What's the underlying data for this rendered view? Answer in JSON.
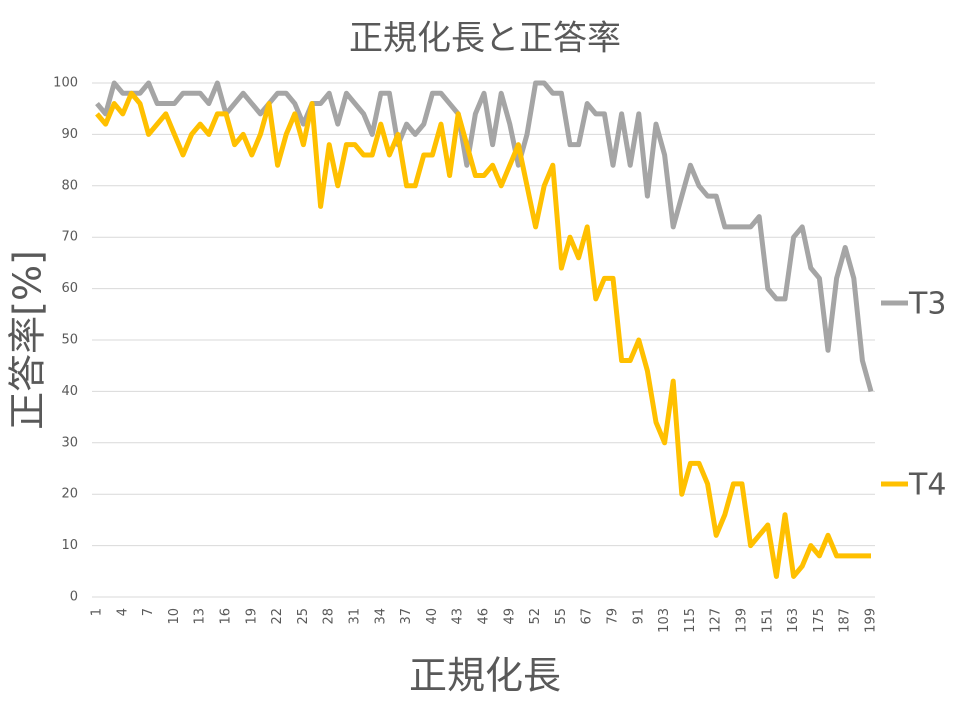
{
  "chart_data": {
    "type": "line",
    "title": "正規化長と正答率",
    "x_label": "正規化長",
    "y_label": "正答率[%]",
    "categories": [
      1,
      null,
      null,
      4,
      null,
      null,
      7,
      null,
      null,
      10,
      null,
      null,
      13,
      null,
      null,
      16,
      null,
      null,
      19,
      null,
      null,
      22,
      null,
      null,
      25,
      null,
      null,
      28,
      null,
      null,
      31,
      null,
      null,
      34,
      null,
      null,
      37,
      null,
      null,
      40,
      null,
      null,
      43,
      null,
      null,
      46,
      null,
      null,
      49,
      null,
      null,
      52,
      null,
      null,
      55,
      null,
      null,
      67,
      null,
      null,
      79,
      null,
      null,
      91,
      null,
      null,
      103,
      null,
      null,
      115,
      null,
      null,
      127,
      null,
      null,
      139,
      null,
      null,
      151,
      null,
      null,
      163,
      null,
      null,
      175,
      null,
      null,
      187,
      null,
      null,
      199
    ],
    "series": [
      {
        "name": "T3",
        "color": "#a5a5a5",
        "values": [
          96,
          94,
          100,
          98,
          98,
          98,
          100,
          96,
          96,
          96,
          98,
          98,
          98,
          96,
          100,
          94,
          96,
          98,
          96,
          94,
          96,
          98,
          98,
          96,
          92,
          96,
          96,
          98,
          92,
          98,
          96,
          94,
          90,
          98,
          98,
          88,
          92,
          90,
          92,
          98,
          98,
          96,
          94,
          84,
          94,
          98,
          88,
          98,
          92,
          84,
          90,
          100,
          100,
          98,
          98,
          88,
          88,
          96,
          94,
          94,
          84,
          94,
          84,
          94,
          78,
          92,
          86,
          72,
          78,
          84,
          80,
          78,
          78,
          72,
          72,
          72,
          72,
          74,
          60,
          58,
          58,
          70,
          72,
          64,
          62,
          48,
          62,
          68,
          62,
          46,
          40
        ]
      },
      {
        "name": "T4",
        "color": "#ffc000",
        "values": [
          94,
          92,
          96,
          94,
          98,
          96,
          90,
          92,
          94,
          90,
          86,
          90,
          92,
          90,
          94,
          94,
          88,
          90,
          86,
          90,
          96,
          84,
          90,
          94,
          88,
          96,
          76,
          88,
          80,
          88,
          88,
          86,
          86,
          92,
          86,
          90,
          80,
          80,
          86,
          86,
          92,
          82,
          94,
          88,
          82,
          82,
          84,
          80,
          84,
          88,
          80,
          72,
          80,
          84,
          64,
          70,
          66,
          72,
          58,
          62,
          62,
          46,
          46,
          50,
          44,
          34,
          30,
          42,
          20,
          26,
          26,
          22,
          12,
          16,
          22,
          22,
          10,
          12,
          14,
          4,
          16,
          4,
          6,
          10,
          8,
          12,
          8,
          8,
          8,
          8,
          8
        ]
      }
    ],
    "ylim": [
      0,
      100
    ],
    "yticks": [
      0,
      10,
      20,
      30,
      40,
      50,
      60,
      70,
      80,
      90,
      100
    ],
    "grid": true
  }
}
